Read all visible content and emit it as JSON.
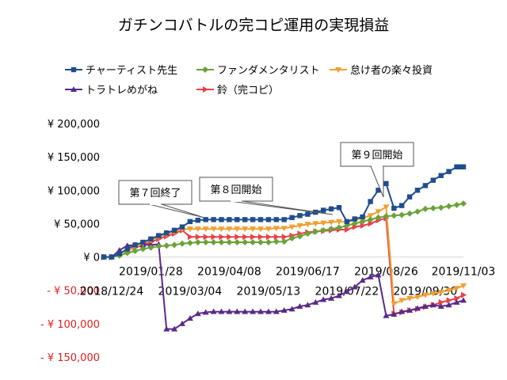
{
  "chart_data": {
    "type": "line",
    "title": "ガチンコバトルの完コピ運用の実現損益",
    "ylim": [
      -150000,
      200000
    ],
    "yticks": [
      {
        "value": 200000,
        "label": "¥ 200,000"
      },
      {
        "value": 150000,
        "label": "¥ 150,000"
      },
      {
        "value": 100000,
        "label": "¥ 100,000"
      },
      {
        "value": 50000,
        "label": "¥ 50,000"
      },
      {
        "value": 0,
        "label": "¥ 0"
      },
      {
        "value": -50000,
        "label": "- ¥ 50,000"
      },
      {
        "value": -100000,
        "label": "- ¥ 100,000"
      },
      {
        "value": -150000,
        "label": "- ¥ 150,000"
      }
    ],
    "x_start": "2018/12/17",
    "x_end": "2019/11/03",
    "xticks_upper": [
      "2019/01/28",
      "2019/04/08",
      "2019/06/17",
      "2019/08/26",
      "2019/11/03"
    ],
    "xticks_lower": [
      "2018/12/24",
      "2019/03/04",
      "2019/05/13",
      "2019/07/22",
      "2019/09/30"
    ],
    "grid": false,
    "legend_position": "top",
    "series": [
      {
        "name": "チャーティスト先生",
        "color": "#1f4e8c",
        "marker": "square",
        "points": [
          [
            "2018/12/17",
            0
          ],
          [
            "2018/12/24",
            0
          ],
          [
            "2018/12/31",
            5000
          ],
          [
            "2019/01/07",
            12000
          ],
          [
            "2019/01/14",
            18000
          ],
          [
            "2019/01/21",
            22000
          ],
          [
            "2019/01/28",
            27000
          ],
          [
            "2019/02/04",
            32000
          ],
          [
            "2019/02/11",
            36000
          ],
          [
            "2019/02/18",
            40000
          ],
          [
            "2019/02/25",
            45000
          ],
          [
            "2019/03/04",
            53000
          ],
          [
            "2019/03/11",
            55000
          ],
          [
            "2019/03/18",
            56000
          ],
          [
            "2019/03/25",
            56000
          ],
          [
            "2019/04/01",
            56000
          ],
          [
            "2019/04/08",
            56000
          ],
          [
            "2019/04/15",
            56000
          ],
          [
            "2019/04/22",
            56000
          ],
          [
            "2019/04/29",
            56000
          ],
          [
            "2019/05/06",
            56000
          ],
          [
            "2019/05/13",
            56000
          ],
          [
            "2019/05/20",
            56000
          ],
          [
            "2019/05/27",
            56000
          ],
          [
            "2019/06/03",
            59000
          ],
          [
            "2019/06/10",
            62000
          ],
          [
            "2019/06/17",
            64000
          ],
          [
            "2019/06/24",
            67000
          ],
          [
            "2019/07/01",
            70000
          ],
          [
            "2019/07/08",
            72000
          ],
          [
            "2019/07/15",
            74000
          ],
          [
            "2019/07/22",
            53000
          ],
          [
            "2019/07/29",
            57000
          ],
          [
            "2019/08/05",
            60000
          ],
          [
            "2019/08/12",
            83000
          ],
          [
            "2019/08/19",
            100000
          ],
          [
            "2019/08/26",
            110000
          ],
          [
            "2019/09/02",
            73000
          ],
          [
            "2019/09/09",
            77000
          ],
          [
            "2019/09/16",
            90000
          ],
          [
            "2019/09/23",
            100000
          ],
          [
            "2019/09/30",
            107000
          ],
          [
            "2019/10/07",
            115000
          ],
          [
            "2019/10/14",
            122000
          ],
          [
            "2019/10/21",
            128000
          ],
          [
            "2019/10/28",
            135000
          ],
          [
            "2019/11/01",
            135000
          ],
          [
            "2019/11/03",
            135000
          ]
        ]
      },
      {
        "name": "ファンダメンタリスト",
        "color": "#6aa238",
        "marker": "diamond",
        "points": [
          [
            "2018/12/17",
            0
          ],
          [
            "2018/12/24",
            0
          ],
          [
            "2018/12/31",
            2000
          ],
          [
            "2019/01/07",
            6000
          ],
          [
            "2019/01/14",
            9000
          ],
          [
            "2019/01/21",
            12000
          ],
          [
            "2019/01/28",
            14000
          ],
          [
            "2019/02/04",
            16000
          ],
          [
            "2019/02/11",
            17000
          ],
          [
            "2019/02/18",
            18000
          ],
          [
            "2019/02/25",
            20000
          ],
          [
            "2019/03/04",
            21000
          ],
          [
            "2019/03/11",
            22000
          ],
          [
            "2019/03/18",
            22000
          ],
          [
            "2019/03/25",
            22000
          ],
          [
            "2019/04/01",
            22000
          ],
          [
            "2019/04/08",
            22000
          ],
          [
            "2019/04/15",
            22000
          ],
          [
            "2019/04/22",
            22000
          ],
          [
            "2019/04/29",
            22000
          ],
          [
            "2019/05/06",
            22000
          ],
          [
            "2019/05/13",
            22000
          ],
          [
            "2019/05/20",
            23000
          ],
          [
            "2019/05/27",
            23000
          ],
          [
            "2019/06/03",
            28000
          ],
          [
            "2019/06/10",
            31000
          ],
          [
            "2019/06/17",
            35000
          ],
          [
            "2019/06/24",
            38000
          ],
          [
            "2019/07/01",
            40000
          ],
          [
            "2019/07/08",
            42000
          ],
          [
            "2019/07/15",
            44000
          ],
          [
            "2019/07/22",
            47000
          ],
          [
            "2019/07/29",
            50000
          ],
          [
            "2019/08/05",
            53000
          ],
          [
            "2019/08/12",
            56000
          ],
          [
            "2019/08/19",
            59000
          ],
          [
            "2019/08/26",
            61000
          ],
          [
            "2019/09/02",
            62000
          ],
          [
            "2019/09/09",
            63000
          ],
          [
            "2019/09/16",
            65000
          ],
          [
            "2019/09/23",
            68000
          ],
          [
            "2019/09/30",
            72000
          ],
          [
            "2019/10/07",
            73000
          ],
          [
            "2019/10/14",
            74000
          ],
          [
            "2019/10/21",
            76000
          ],
          [
            "2019/10/28",
            78000
          ],
          [
            "2019/11/03",
            80000
          ]
        ]
      },
      {
        "name": "怠け者の楽々投資",
        "color": "#f0a030",
        "marker": "triangle-down",
        "points": [
          [
            "2018/12/17",
            0
          ],
          [
            "2018/12/24",
            0
          ],
          [
            "2018/12/31",
            5000
          ],
          [
            "2019/01/07",
            10000
          ],
          [
            "2019/01/14",
            15000
          ],
          [
            "2019/01/21",
            20000
          ],
          [
            "2019/01/28",
            25000
          ],
          [
            "2019/02/04",
            30000
          ],
          [
            "2019/02/11",
            34000
          ],
          [
            "2019/02/18",
            38000
          ],
          [
            "2019/02/25",
            42000
          ],
          [
            "2019/03/04",
            42000
          ],
          [
            "2019/03/11",
            42000
          ],
          [
            "2019/03/18",
            42000
          ],
          [
            "2019/03/25",
            42000
          ],
          [
            "2019/04/01",
            42000
          ],
          [
            "2019/04/08",
            42000
          ],
          [
            "2019/04/15",
            42000
          ],
          [
            "2019/04/22",
            42000
          ],
          [
            "2019/04/29",
            42000
          ],
          [
            "2019/05/06",
            42000
          ],
          [
            "2019/05/13",
            42000
          ],
          [
            "2019/05/20",
            43000
          ],
          [
            "2019/05/27",
            43000
          ],
          [
            "2019/06/03",
            45000
          ],
          [
            "2019/06/10",
            47000
          ],
          [
            "2019/06/17",
            49000
          ],
          [
            "2019/06/24",
            50000
          ],
          [
            "2019/07/01",
            51000
          ],
          [
            "2019/07/08",
            52000
          ],
          [
            "2019/07/15",
            53000
          ],
          [
            "2019/07/22",
            52000
          ],
          [
            "2019/07/29",
            55000
          ],
          [
            "2019/08/05",
            58000
          ],
          [
            "2019/08/12",
            62000
          ],
          [
            "2019/08/19",
            68000
          ],
          [
            "2019/08/26",
            75000
          ],
          [
            "2019/09/02",
            -70000
          ],
          [
            "2019/09/09",
            -65000
          ],
          [
            "2019/09/16",
            -62000
          ],
          [
            "2019/09/23",
            -60000
          ],
          [
            "2019/09/30",
            -57000
          ],
          [
            "2019/10/07",
            -55000
          ],
          [
            "2019/10/14",
            -53000
          ],
          [
            "2019/10/21",
            -50000
          ],
          [
            "2019/10/28",
            -47000
          ],
          [
            "2019/11/03",
            -43000
          ]
        ]
      },
      {
        "name": "トラトレめがね",
        "color": "#5a2a8a",
        "marker": "triangle-up",
        "points": [
          [
            "2018/12/17",
            0
          ],
          [
            "2018/12/24",
            0
          ],
          [
            "2018/12/31",
            10000
          ],
          [
            "2019/01/07",
            17000
          ],
          [
            "2019/01/14",
            18000
          ],
          [
            "2019/01/21",
            18000
          ],
          [
            "2019/01/28",
            18000
          ],
          [
            "2019/02/04",
            19000
          ],
          [
            "2019/02/11",
            -108000
          ],
          [
            "2019/02/18",
            -108000
          ],
          [
            "2019/02/25",
            -100000
          ],
          [
            "2019/03/04",
            -92000
          ],
          [
            "2019/03/11",
            -85000
          ],
          [
            "2019/03/18",
            -83000
          ],
          [
            "2019/03/25",
            -82000
          ],
          [
            "2019/04/01",
            -82000
          ],
          [
            "2019/04/08",
            -82000
          ],
          [
            "2019/04/15",
            -82000
          ],
          [
            "2019/04/22",
            -82000
          ],
          [
            "2019/04/29",
            -82000
          ],
          [
            "2019/05/06",
            -82000
          ],
          [
            "2019/05/13",
            -82000
          ],
          [
            "2019/05/20",
            -82000
          ],
          [
            "2019/05/27",
            -80000
          ],
          [
            "2019/06/03",
            -78000
          ],
          [
            "2019/06/10",
            -74000
          ],
          [
            "2019/06/17",
            -72000
          ],
          [
            "2019/06/24",
            -68000
          ],
          [
            "2019/07/01",
            -64000
          ],
          [
            "2019/07/08",
            -62000
          ],
          [
            "2019/07/15",
            -58000
          ],
          [
            "2019/07/22",
            -52000
          ],
          [
            "2019/07/29",
            -45000
          ],
          [
            "2019/08/05",
            -35000
          ],
          [
            "2019/08/12",
            -30000
          ],
          [
            "2019/08/19",
            -27000
          ],
          [
            "2019/08/26",
            -88000
          ],
          [
            "2019/09/02",
            -86000
          ],
          [
            "2019/09/09",
            -82000
          ],
          [
            "2019/09/16",
            -80000
          ],
          [
            "2019/09/23",
            -77000
          ],
          [
            "2019/09/30",
            -74000
          ],
          [
            "2019/10/07",
            -72000
          ],
          [
            "2019/10/14",
            -74000
          ],
          [
            "2019/10/21",
            -72000
          ],
          [
            "2019/10/28",
            -68000
          ],
          [
            "2019/11/03",
            -65000
          ]
        ]
      },
      {
        "name": "鈴（完コピ）",
        "color": "#e8404a",
        "marker": "triangle-right",
        "points": [
          [
            "2018/12/17",
            0
          ],
          [
            "2018/12/24",
            0
          ],
          [
            "2018/12/31",
            5000
          ],
          [
            "2019/01/07",
            10000
          ],
          [
            "2019/01/14",
            14000
          ],
          [
            "2019/01/21",
            18000
          ],
          [
            "2019/01/28",
            22000
          ],
          [
            "2019/02/04",
            27000
          ],
          [
            "2019/02/11",
            31000
          ],
          [
            "2019/02/18",
            35000
          ],
          [
            "2019/02/25",
            40000
          ],
          [
            "2019/03/04",
            30000
          ],
          [
            "2019/03/11",
            30000
          ],
          [
            "2019/03/18",
            30000
          ],
          [
            "2019/03/25",
            30000
          ],
          [
            "2019/04/01",
            30000
          ],
          [
            "2019/04/08",
            30000
          ],
          [
            "2019/04/15",
            30000
          ],
          [
            "2019/04/22",
            30000
          ],
          [
            "2019/04/29",
            30000
          ],
          [
            "2019/05/06",
            30000
          ],
          [
            "2019/05/13",
            30000
          ],
          [
            "2019/05/20",
            30000
          ],
          [
            "2019/05/27",
            30000
          ],
          [
            "2019/06/03",
            32000
          ],
          [
            "2019/06/10",
            35000
          ],
          [
            "2019/06/17",
            37000
          ],
          [
            "2019/06/24",
            38000
          ],
          [
            "2019/07/01",
            39000
          ],
          [
            "2019/07/08",
            40000
          ],
          [
            "2019/07/15",
            41000
          ],
          [
            "2019/07/22",
            41000
          ],
          [
            "2019/07/29",
            45000
          ],
          [
            "2019/08/05",
            47000
          ],
          [
            "2019/08/12",
            50000
          ],
          [
            "2019/08/19",
            55000
          ],
          [
            "2019/08/26",
            58000
          ],
          [
            "2019/09/02",
            -85000
          ],
          [
            "2019/09/09",
            -83000
          ],
          [
            "2019/09/16",
            -80000
          ],
          [
            "2019/09/23",
            -78000
          ],
          [
            "2019/09/30",
            -75000
          ],
          [
            "2019/10/07",
            -72000
          ],
          [
            "2019/10/14",
            -68000
          ],
          [
            "2019/10/21",
            -65000
          ],
          [
            "2019/10/28",
            -62000
          ],
          [
            "2019/11/03",
            -57000
          ]
        ]
      }
    ],
    "annotations": [
      {
        "text": "第７回終了",
        "date": "2019/03/04",
        "value": 56000
      },
      {
        "text": "第８回開始",
        "date": "2019/06/10",
        "value": 60000
      },
      {
        "text": "第９回開始",
        "date": "2019/09/02",
        "value": 77000
      }
    ]
  }
}
